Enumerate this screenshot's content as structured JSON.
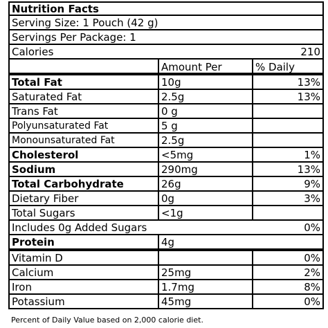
{
  "title": "Nutrition Facts",
  "serving_size": "Serving Size:  1 Pouch (42 g)",
  "servings_per_package": "Servings Per Package: 1",
  "calories": {
    "label": "Calories",
    "value": "210"
  },
  "columns": {
    "amount": "Amount Per Serving",
    "dv": "% Daily Value"
  },
  "rows": [
    {
      "name": "Total Fat",
      "amount": "10g",
      "dv": "13%"
    },
    {
      "name": "Saturated Fat",
      "amount": "2.5g",
      "dv": "13%"
    },
    {
      "name": "Trans Fat",
      "amount": "0 g",
      "dv": ""
    },
    {
      "name": "Polyunsaturated Fat",
      "amount": "5 g",
      "dv": ""
    },
    {
      "name": "Monounsaturated Fat",
      "amount": "2.5g",
      "dv": ""
    },
    {
      "name": "Cholesterol",
      "amount": "<5mg",
      "dv": "1%"
    },
    {
      "name": "Sodium",
      "amount": "290mg",
      "dv": "13%"
    },
    {
      "name": "Total Carbohydrate",
      "amount": "26g",
      "dv": "9%"
    },
    {
      "name": "Dietary Fiber",
      "amount": "0g",
      "dv": "3%"
    },
    {
      "name": "Total Sugars",
      "amount": "<1g",
      "dv": ""
    },
    {
      "name": "Includes 0g Added Sugars",
      "amount": "",
      "dv": "0%"
    },
    {
      "name": "Protein",
      "amount": "4g",
      "dv": ""
    },
    {
      "name": "Vitamin D",
      "amount": "",
      "dv": "0%"
    },
    {
      "name": "Calcium",
      "amount": "25mg",
      "dv": "2%"
    },
    {
      "name": "Iron",
      "amount": "1.7mg",
      "dv": "8%"
    },
    {
      "name": "Potassium",
      "amount": "45mg",
      "dv": "0%"
    }
  ],
  "footnote": "Percent of Daily Value based on 2,000 calorie diet."
}
